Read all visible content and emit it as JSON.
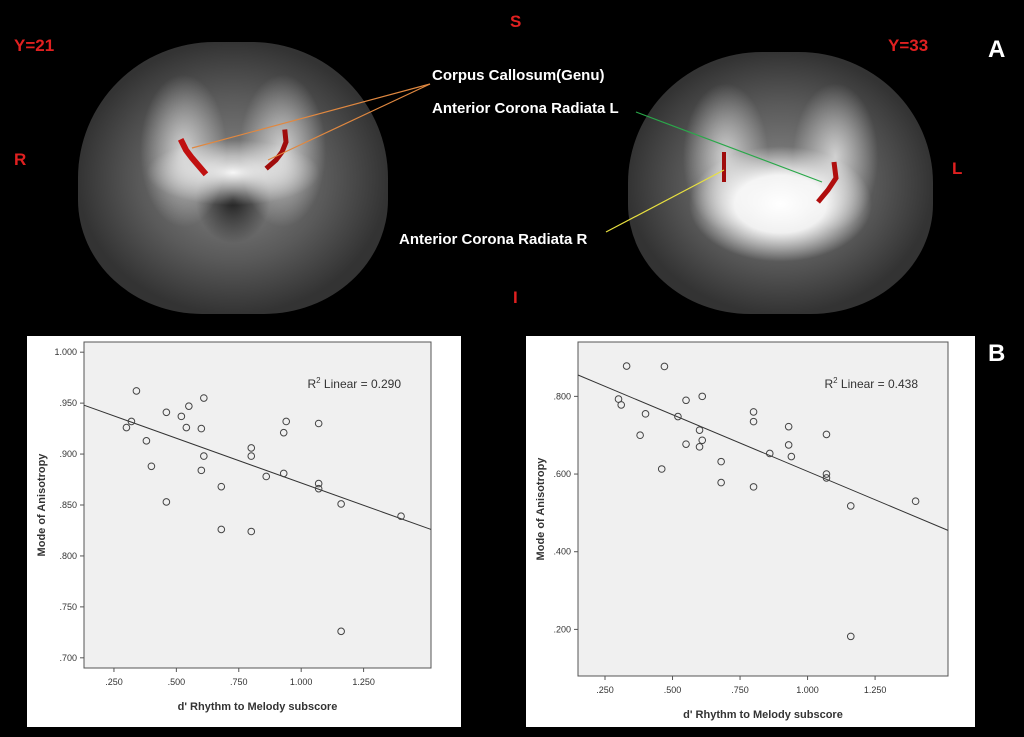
{
  "panel_a": {
    "letter": "A",
    "left_slice": "Y=21",
    "right_slice": "Y=33",
    "superior": "S",
    "inferior": "I",
    "right_side": "R",
    "left_side": "L",
    "annotations": {
      "genu": "Corpus Callosum(Genu)",
      "acr_l": "Anterior Corona Radiata L",
      "acr_r": "Anterior Corona Radiata R"
    },
    "colors": {
      "label": "#e02020",
      "lesion": "#c01010",
      "genu_line": "#e08840",
      "acr_l_line": "#2aa84a",
      "acr_r_line": "#e8e040"
    }
  },
  "panel_b": {
    "letter": "B"
  },
  "chart_data": [
    {
      "type": "scatter",
      "xlabel": "d' Rhythm to Melody subscore",
      "ylabel": "Mode of Anisotropy",
      "annotation": "Linear = 0.290",
      "annotation_prefix": "R",
      "annotation_sup": "2",
      "xlim": [
        0.13,
        1.52
      ],
      "ylim": [
        0.69,
        1.01
      ],
      "xticks": [
        0.25,
        0.5,
        0.75,
        1.0,
        1.25
      ],
      "xtick_labels": [
        ".250",
        ".500",
        ".750",
        "1.000",
        "1.250"
      ],
      "yticks": [
        0.7,
        0.75,
        0.8,
        0.85,
        0.9,
        0.95,
        1.0
      ],
      "ytick_labels": [
        ".700",
        ".750",
        ".800",
        ".850",
        ".900",
        ".950",
        "1.000"
      ],
      "fit_line": {
        "x": [
          0.13,
          1.52
        ],
        "y": [
          0.948,
          0.826
        ]
      },
      "x": [
        0.3,
        0.32,
        0.34,
        0.38,
        0.4,
        0.46,
        0.46,
        0.52,
        0.54,
        0.55,
        0.6,
        0.6,
        0.61,
        0.61,
        0.68,
        0.68,
        0.8,
        0.8,
        0.8,
        0.86,
        0.93,
        0.93,
        0.94,
        1.07,
        1.07,
        1.07,
        1.16,
        1.16,
        1.4
      ],
      "y": [
        0.926,
        0.932,
        0.962,
        0.913,
        0.888,
        0.853,
        0.941,
        0.937,
        0.926,
        0.947,
        0.884,
        0.925,
        0.898,
        0.955,
        0.868,
        0.826,
        0.906,
        0.898,
        0.824,
        0.878,
        0.881,
        0.921,
        0.932,
        0.93,
        0.866,
        0.871,
        0.851,
        0.726,
        0.839
      ],
      "colors": {
        "plot_bg": "#f0f0f0",
        "marker": "#444444",
        "line": "#333333"
      }
    },
    {
      "type": "scatter",
      "xlabel": "d' Rhythm to Melody subscore",
      "ylabel": "Mode of Anisotropy",
      "annotation": "Linear = 0.438",
      "annotation_prefix": "R",
      "annotation_sup": "2",
      "xlim": [
        0.15,
        1.52
      ],
      "ylim": [
        0.08,
        0.94
      ],
      "xticks": [
        0.25,
        0.5,
        0.75,
        1.0,
        1.25
      ],
      "xtick_labels": [
        ".250",
        ".500",
        ".750",
        "1.000",
        "1.250"
      ],
      "yticks": [
        0.2,
        0.4,
        0.6,
        0.8
      ],
      "ytick_labels": [
        ".200",
        ".400",
        ".600",
        ".800"
      ],
      "fit_line": {
        "x": [
          0.15,
          1.52
        ],
        "y": [
          0.855,
          0.455
        ]
      },
      "x": [
        0.3,
        0.31,
        0.33,
        0.38,
        0.4,
        0.46,
        0.47,
        0.52,
        0.55,
        0.55,
        0.6,
        0.6,
        0.61,
        0.61,
        0.68,
        0.68,
        0.8,
        0.8,
        0.8,
        0.86,
        0.93,
        0.93,
        0.94,
        1.07,
        1.07,
        1.07,
        1.16,
        1.16,
        1.4
      ],
      "y": [
        0.793,
        0.778,
        0.878,
        0.7,
        0.755,
        0.613,
        0.877,
        0.748,
        0.677,
        0.79,
        0.67,
        0.713,
        0.687,
        0.8,
        0.632,
        0.578,
        0.76,
        0.735,
        0.567,
        0.653,
        0.675,
        0.722,
        0.645,
        0.702,
        0.6,
        0.59,
        0.518,
        0.182,
        0.53
      ],
      "colors": {
        "plot_bg": "#f0f0f0",
        "marker": "#444444",
        "line": "#333333"
      }
    }
  ]
}
